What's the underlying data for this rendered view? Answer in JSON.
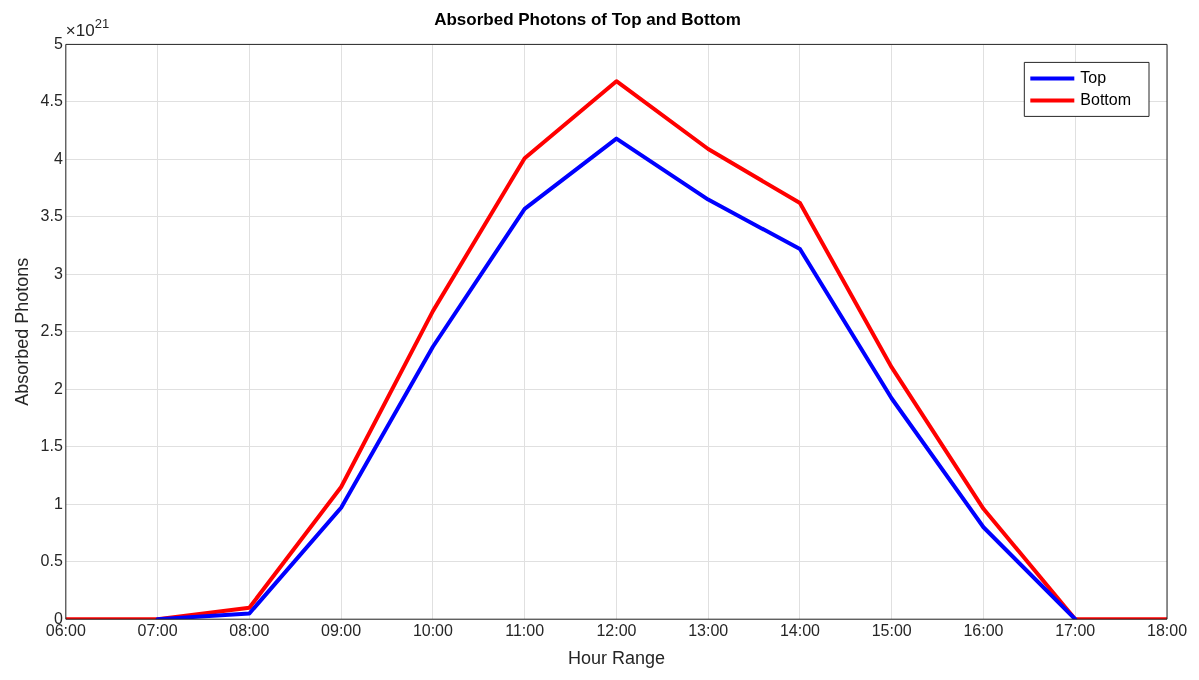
{
  "chart_data": {
    "type": "line",
    "title": "Absorbed Photons of Top and Bottom",
    "xlabel": "Hour Range",
    "ylabel": "Absorbed Photons",
    "annotations": [
      "×10$^{21}$"
    ],
    "x": [
      6,
      7,
      8,
      9,
      10,
      11,
      12,
      13,
      14,
      15,
      16,
      17,
      18
    ],
    "series": [
      {
        "name": "Top",
        "color": "#0000ff",
        "values": [
          null,
          0,
          0.05,
          0.97,
          2.37,
          3.57,
          4.18,
          3.65,
          3.22,
          1.92,
          0.8,
          0,
          null
        ]
      },
      {
        "name": "Bottom",
        "color": "#ff0000",
        "values": [
          0,
          0,
          0.1,
          1.15,
          2.68,
          4.01,
          4.68,
          4.09,
          3.62,
          2.19,
          0.96,
          0,
          0
        ]
      }
    ],
    "xlim": [
      6,
      18
    ],
    "xticks": [
      {
        "value": 6,
        "label": "06:00"
      },
      {
        "value": 7,
        "label": "07:00"
      },
      {
        "value": 8,
        "label": "08:00"
      },
      {
        "value": 9,
        "label": "09:00"
      },
      {
        "value": 10,
        "label": "10:00"
      },
      {
        "value": 11,
        "label": "11:00"
      },
      {
        "value": 12,
        "label": "12:00"
      },
      {
        "value": 13,
        "label": "13:00"
      },
      {
        "value": 14,
        "label": "14:00"
      },
      {
        "value": 15,
        "label": "15:00"
      },
      {
        "value": 16,
        "label": "16:00"
      },
      {
        "value": 17,
        "label": "17:00"
      },
      {
        "value": 18,
        "label": "18:00"
      }
    ],
    "ylim": [
      0,
      5
    ],
    "yticks": [
      0,
      0.5,
      1,
      1.5,
      2,
      2.5,
      3,
      3.5,
      4,
      4.5,
      5
    ],
    "grid": true,
    "legend": "top right",
    "marker": "none",
    "line_style": "solid"
  }
}
